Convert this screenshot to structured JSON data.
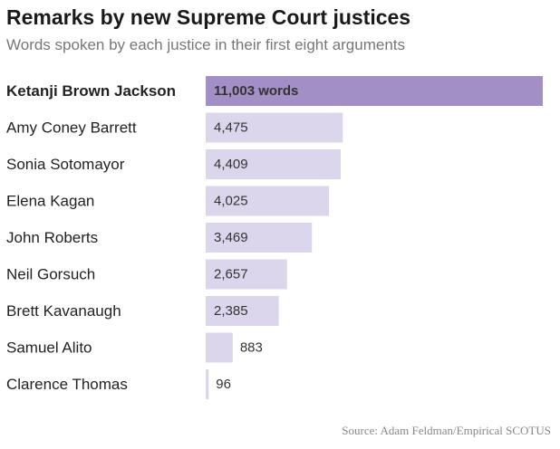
{
  "title": "Remarks by new Supreme Court justices",
  "subtitle": "Words spoken by each justice in their first eight arguments",
  "source": "Source: Adam Feldman/Empirical SCOTUS",
  "colors": {
    "highlight_bar": "#a18fc6",
    "bar": "#dcd6ec",
    "label_text": "#222222",
    "value_text": "#333333"
  },
  "chart_data": {
    "type": "bar",
    "orientation": "horizontal",
    "title": "Remarks by new Supreme Court justices",
    "subtitle": "Words spoken by each justice in their first eight arguments",
    "categories": [
      "Ketanji Brown Jackson",
      "Amy Coney Barrett",
      "Sonia Sotomayor",
      "Elena Kagan",
      "John Roberts",
      "Neil Gorsuch",
      "Brett Kavanaugh",
      "Samuel Alito",
      "Clarence Thomas"
    ],
    "values": [
      11003,
      4475,
      4409,
      4025,
      3469,
      2657,
      2385,
      883,
      96
    ],
    "value_labels": [
      "11,003 words",
      "4,475",
      "4,409",
      "4,025",
      "3,469",
      "2,657",
      "2,385",
      "883",
      "96"
    ],
    "highlighted_category": "Ketanji Brown Jackson",
    "xlim": [
      0,
      11003
    ],
    "grid": false,
    "legend": "none"
  }
}
